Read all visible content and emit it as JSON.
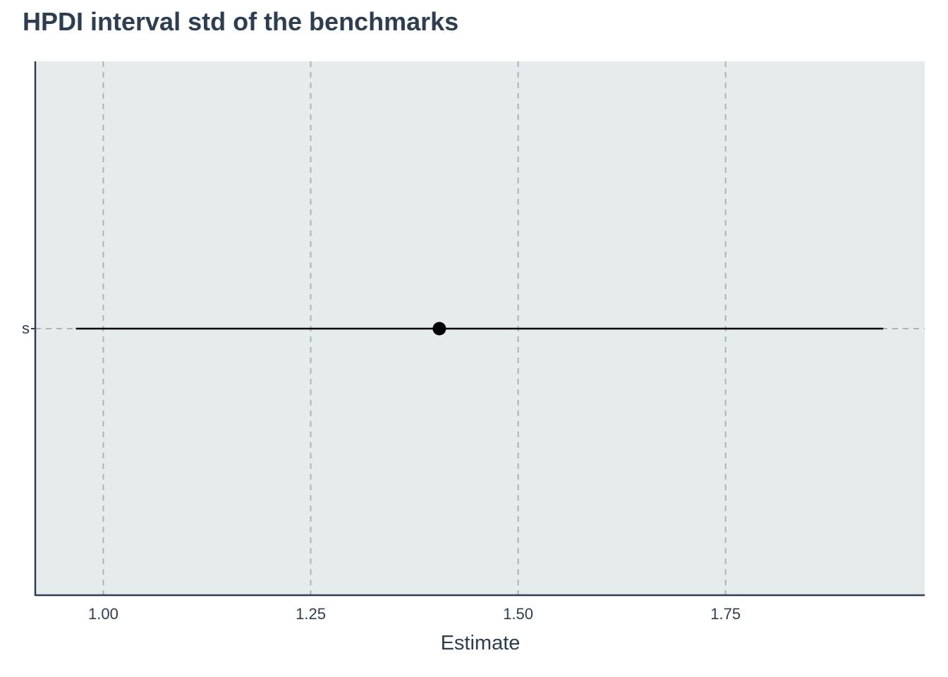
{
  "chart_data": {
    "type": "scatter",
    "title": "HPDI interval std of the benchmarks",
    "xlabel": "Estimate",
    "ylabel": "",
    "xlim": [
      0.918,
      1.99
    ],
    "xticks": [
      {
        "value": 1.0,
        "label": "1.00"
      },
      {
        "value": 1.25,
        "label": "1.25"
      },
      {
        "value": 1.5,
        "label": "1.50"
      },
      {
        "value": 1.75,
        "label": "1.75"
      }
    ],
    "categories": [
      "s"
    ],
    "points": [
      {
        "category": "s",
        "estimate": 1.405,
        "lower": 0.967,
        "upper": 1.94
      }
    ],
    "grid": "dashed vertical at x ticks, dashed horizontal at category",
    "colors": {
      "panel_background": "#e6ecec",
      "grid": "#aeb3b6",
      "axis": "#2c3e50",
      "marker": "#000000",
      "text": "#2c3e50"
    }
  }
}
